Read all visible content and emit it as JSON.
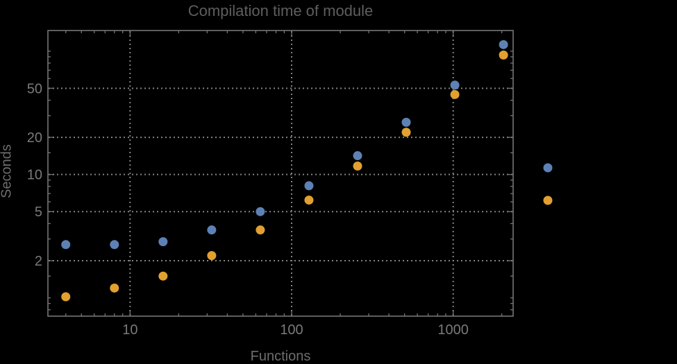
{
  "title": "Compilation time of module",
  "colors": {
    "background": "#000000",
    "frame": "#757575",
    "grid": "#848484",
    "title_text": "#5e5e5e",
    "axis_label_text": "#6d6d6d",
    "tick_label_text": "#7a7a7a",
    "series_blue": "#5E81B5",
    "series_orange": "#E2A02F"
  },
  "chart_data": {
    "type": "scatter",
    "x_scale": "log",
    "y_scale": "log",
    "title": "Compilation time of module",
    "xlabel": "Functions",
    "ylabel": "Seconds",
    "xlim": [
      3.1,
      2350
    ],
    "ylim": [
      0.71,
      147
    ],
    "grid": "dotted gray lines at labeled major ticks, black background, full frame with inward ticks on all four sides",
    "x": [
      4,
      8,
      16,
      32,
      64,
      128,
      256,
      512,
      1024,
      2048
    ],
    "series": [
      {
        "name": "blue",
        "color": "#5E81B5",
        "values": [
          2.7,
          2.7,
          2.85,
          3.55,
          5.0,
          8.1,
          14.2,
          26.5,
          53,
          113
        ]
      },
      {
        "name": "orange",
        "color": "#E2A02F",
        "values": [
          1.02,
          1.2,
          1.5,
          2.2,
          3.55,
          6.2,
          11.7,
          22,
          44.5,
          93
        ]
      }
    ],
    "x_major_ticks": [
      10,
      100,
      1000
    ],
    "x_major_tick_labels": [
      "10",
      "100",
      "1000"
    ],
    "x_minor_ticks": [
      4,
      5,
      6,
      7,
      8,
      9,
      20,
      30,
      40,
      50,
      60,
      70,
      80,
      90,
      200,
      300,
      400,
      500,
      600,
      700,
      800,
      900,
      2000
    ],
    "y_major_ticks": [
      2,
      5,
      10,
      20,
      50
    ],
    "y_major_tick_labels": [
      "2",
      "5",
      "10",
      "20",
      "50"
    ],
    "y_minor_ticks": [
      0.8,
      0.9,
      1,
      1.5,
      3,
      4,
      6,
      7,
      8,
      9,
      15,
      30,
      40,
      60,
      70,
      80,
      90,
      100
    ],
    "gridline_x_values": [
      10,
      100,
      1000
    ],
    "gridline_y_values": [
      2,
      5,
      10,
      20,
      50
    ],
    "legend": {
      "position": "right-outside",
      "entries": [
        {
          "label": "",
          "color": "#5E81B5"
        },
        {
          "label": "",
          "color": "#E2A02F"
        }
      ]
    }
  }
}
